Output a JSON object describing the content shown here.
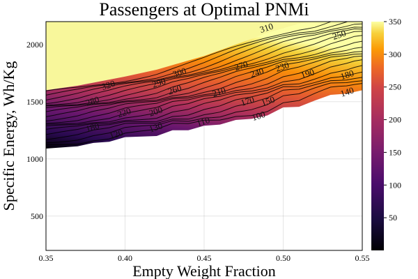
{
  "chart_data": {
    "type": "contour",
    "title": "Passengers at Optimal PNMi",
    "xlabel": "Empty Weight Fraction",
    "ylabel": "Specific Energy, Wh/Kg",
    "xlim": [
      0.35,
      0.55
    ],
    "ylim": [
      200,
      2200
    ],
    "x_ticks": [
      0.35,
      0.4,
      0.45,
      0.5,
      0.55
    ],
    "x_tick_labels": [
      "0.35",
      "0.40",
      "0.45",
      "0.50",
      "0.55"
    ],
    "y_ticks": [
      500,
      1000,
      1500,
      2000
    ],
    "y_tick_labels": [
      "500",
      "1000",
      "1500",
      "2000"
    ],
    "grid": true,
    "colormap": "inferno",
    "colorbar": {
      "range": [
        0,
        350
      ],
      "ticks": [
        50,
        100,
        150,
        200,
        250,
        300,
        350
      ],
      "tick_labels": [
        "50",
        "100",
        "150",
        "200",
        "250",
        "300",
        "350"
      ]
    },
    "boundary_low": [
      [
        0.35,
        1090
      ],
      [
        0.37,
        1110
      ],
      [
        0.38,
        1140
      ],
      [
        0.39,
        1150
      ],
      [
        0.4,
        1190
      ],
      [
        0.42,
        1200
      ],
      [
        0.43,
        1250
      ],
      [
        0.44,
        1250
      ],
      [
        0.45,
        1290
      ],
      [
        0.46,
        1300
      ],
      [
        0.47,
        1340
      ],
      [
        0.48,
        1350
      ],
      [
        0.49,
        1380
      ],
      [
        0.5,
        1450
      ],
      [
        0.51,
        1455
      ],
      [
        0.52,
        1510
      ],
      [
        0.53,
        1560
      ],
      [
        0.54,
        1570
      ],
      [
        0.55,
        1600
      ]
    ],
    "boundary_high": [
      [
        0.35,
        1600
      ],
      [
        0.37,
        1640
      ],
      [
        0.4,
        1720
      ],
      [
        0.42,
        1780
      ],
      [
        0.44,
        1860
      ],
      [
        0.45,
        1900
      ],
      [
        0.47,
        2000
      ],
      [
        0.49,
        2100
      ],
      [
        0.51,
        2180
      ],
      [
        0.52,
        2200
      ]
    ],
    "contour_labels": [
      {
        "text": "320",
        "x": 0.39,
        "y": 1620
      },
      {
        "text": "300",
        "x": 0.435,
        "y": 1730
      },
      {
        "text": "310",
        "x": 0.49,
        "y": 2120
      },
      {
        "text": "250",
        "x": 0.536,
        "y": 2060
      },
      {
        "text": "290",
        "x": 0.422,
        "y": 1640
      },
      {
        "text": "260",
        "x": 0.432,
        "y": 1580
      },
      {
        "text": "270",
        "x": 0.474,
        "y": 1790
      },
      {
        "text": "240",
        "x": 0.484,
        "y": 1730
      },
      {
        "text": "230",
        "x": 0.5,
        "y": 1780
      },
      {
        "text": "190",
        "x": 0.516,
        "y": 1720
      },
      {
        "text": "180",
        "x": 0.541,
        "y": 1710
      },
      {
        "text": "280",
        "x": 0.38,
        "y": 1480
      },
      {
        "text": "210",
        "x": 0.46,
        "y": 1560
      },
      {
        "text": "170",
        "x": 0.478,
        "y": 1480
      },
      {
        "text": "150",
        "x": 0.491,
        "y": 1480
      },
      {
        "text": "140",
        "x": 0.541,
        "y": 1560
      },
      {
        "text": "220",
        "x": 0.4,
        "y": 1380
      },
      {
        "text": "200",
        "x": 0.42,
        "y": 1390
      },
      {
        "text": "180",
        "x": 0.38,
        "y": 1250
      },
      {
        "text": "120",
        "x": 0.395,
        "y": 1190
      },
      {
        "text": "130",
        "x": 0.42,
        "y": 1250
      },
      {
        "text": "110",
        "x": 0.45,
        "y": 1300
      },
      {
        "text": "100",
        "x": 0.485,
        "y": 1350
      }
    ]
  }
}
